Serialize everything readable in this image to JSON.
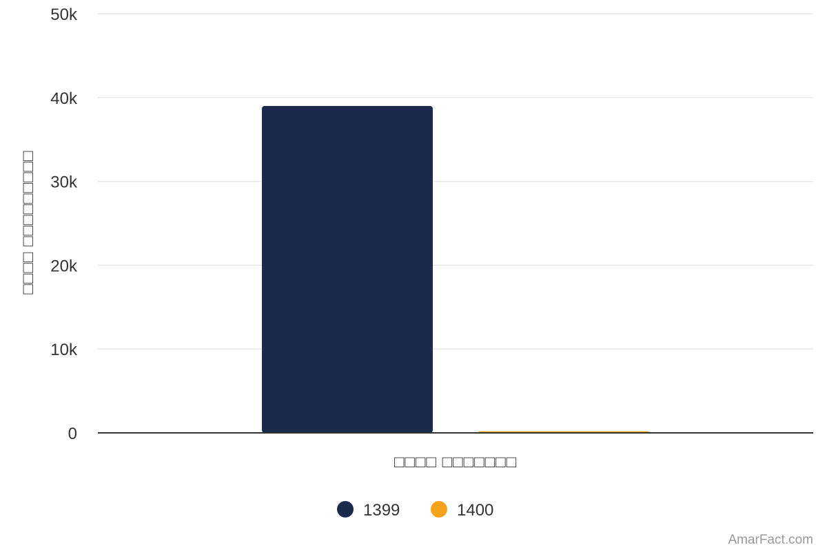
{
  "chart_data": {
    "type": "bar",
    "categories": [
      "□□□□ □□□□□□□"
    ],
    "series": [
      {
        "name": "1399",
        "values": [
          39000
        ],
        "color": "#1b2a4c"
      },
      {
        "name": "1400",
        "values": [
          200
        ],
        "color": "#f5a31a"
      }
    ],
    "xlabel": "□□□□ □□□□□□□",
    "ylabel": "□□□□ □□□□□□□□□",
    "ylim": [
      0,
      50000
    ],
    "yticks": [
      0,
      10000,
      20000,
      30000,
      40000,
      50000
    ],
    "ytick_labels": [
      "0",
      "10k",
      "20k",
      "30k",
      "40k",
      "50k"
    ],
    "grid": true,
    "legend": "bottom-center"
  },
  "credit": "AmarFact.com",
  "colors": {
    "grid": "#e6e6e6",
    "axis": "#333333",
    "text": "#333333",
    "credit": "#999999"
  }
}
